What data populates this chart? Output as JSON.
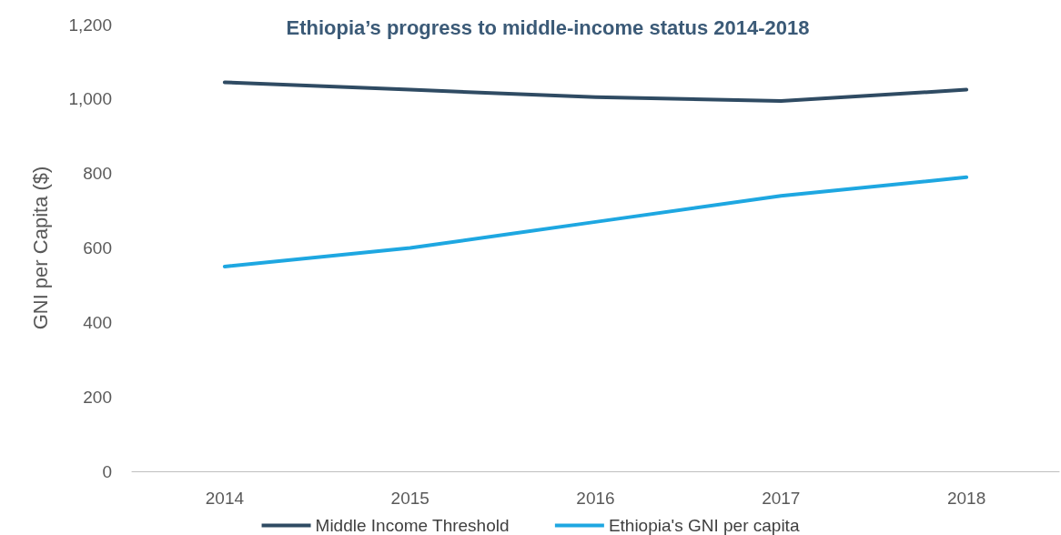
{
  "chart_data": {
    "type": "line",
    "title": "Ethiopia’s progress to middle-income status 2014-2018",
    "ylabel": "GNI per Capita ($)",
    "categories": [
      "2014",
      "2015",
      "2016",
      "2017",
      "2018"
    ],
    "series": [
      {
        "name": "Middle Income Threshold",
        "color": "#2f4b63",
        "values": [
          1045,
          1025,
          1005,
          995,
          1025
        ]
      },
      {
        "name": "Ethiopia's GNI per capita",
        "color": "#1ea7e1",
        "values": [
          550,
          600,
          670,
          740,
          790
        ]
      }
    ],
    "ylim": [
      0,
      1200
    ],
    "yticks": [
      0,
      200,
      400,
      600,
      800,
      {
        "value": 1000,
        "label": "1,000"
      },
      {
        "value": 1200,
        "label": "1,200"
      }
    ],
    "grid": false,
    "legend": "bottom",
    "marker": "none",
    "line_style": "solid"
  }
}
